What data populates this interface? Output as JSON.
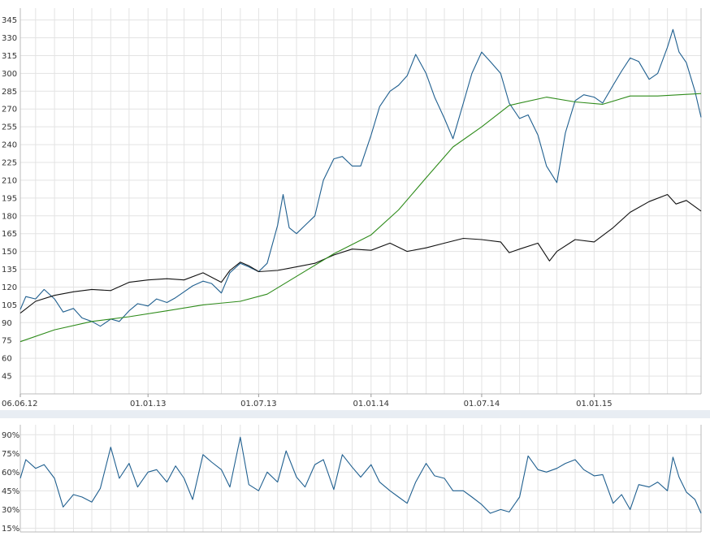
{
  "chart_data": [
    {
      "type": "line",
      "title": "",
      "xlabel": "",
      "ylabel": "",
      "ylim": [
        30,
        355
      ],
      "grid": true,
      "x_tick_labels": [
        "06.06.12",
        "01.01.13",
        "01.07.13",
        "01.01.14",
        "01.07.14",
        "01.01.15"
      ],
      "x_tick_dates": [
        "2012-06-06",
        "2013-01-01",
        "2013-07-01",
        "2014-01-01",
        "2014-07-01",
        "2015-01-01"
      ],
      "y_ticks": [
        45,
        60,
        75,
        90,
        105,
        120,
        135,
        150,
        165,
        180,
        195,
        210,
        225,
        240,
        255,
        270,
        285,
        300,
        315,
        330,
        345
      ],
      "series": [
        {
          "color": "#1f5f8f",
          "points": [
            [
              "2012-06-06",
              101
            ],
            [
              "2012-06-15",
              112
            ],
            [
              "2012-07-01",
              110
            ],
            [
              "2012-07-15",
              118
            ],
            [
              "2012-08-01",
              110
            ],
            [
              "2012-08-15",
              99
            ],
            [
              "2012-09-01",
              102
            ],
            [
              "2012-09-15",
              94
            ],
            [
              "2012-10-01",
              91
            ],
            [
              "2012-10-15",
              87
            ],
            [
              "2012-11-01",
              93
            ],
            [
              "2012-11-15",
              91
            ],
            [
              "2012-12-01",
              100
            ],
            [
              "2012-12-15",
              106
            ],
            [
              "2013-01-01",
              104
            ],
            [
              "2013-01-15",
              110
            ],
            [
              "2013-02-01",
              107
            ],
            [
              "2013-02-15",
              111
            ],
            [
              "2013-03-01",
              116
            ],
            [
              "2013-03-15",
              121
            ],
            [
              "2013-04-01",
              125
            ],
            [
              "2013-04-15",
              123
            ],
            [
              "2013-05-01",
              115
            ],
            [
              "2013-05-15",
              132
            ],
            [
              "2013-06-01",
              140
            ],
            [
              "2013-06-15",
              137
            ],
            [
              "2013-07-01",
              133
            ],
            [
              "2013-07-15",
              140
            ],
            [
              "2013-08-01",
              172
            ],
            [
              "2013-08-10",
              198
            ],
            [
              "2013-08-20",
              170
            ],
            [
              "2013-09-01",
              165
            ],
            [
              "2013-09-15",
              172
            ],
            [
              "2013-10-01",
              180
            ],
            [
              "2013-10-15",
              210
            ],
            [
              "2013-11-01",
              228
            ],
            [
              "2013-11-15",
              230
            ],
            [
              "2013-12-01",
              222
            ],
            [
              "2013-12-15",
              222
            ],
            [
              "2014-01-01",
              248
            ],
            [
              "2014-01-15",
              272
            ],
            [
              "2014-02-01",
              285
            ],
            [
              "2014-02-15",
              290
            ],
            [
              "2014-03-01",
              298
            ],
            [
              "2014-03-15",
              316
            ],
            [
              "2014-04-01",
              300
            ],
            [
              "2014-04-15",
              280
            ],
            [
              "2014-05-01",
              262
            ],
            [
              "2014-05-15",
              245
            ],
            [
              "2014-06-01",
              275
            ],
            [
              "2014-06-15",
              300
            ],
            [
              "2014-07-01",
              318
            ],
            [
              "2014-07-15",
              310
            ],
            [
              "2014-08-01",
              300
            ],
            [
              "2014-08-15",
              275
            ],
            [
              "2014-09-01",
              262
            ],
            [
              "2014-09-15",
              265
            ],
            [
              "2014-10-01",
              248
            ],
            [
              "2014-10-15",
              222
            ],
            [
              "2014-11-01",
              208
            ],
            [
              "2014-11-15",
              250
            ],
            [
              "2014-12-01",
              277
            ],
            [
              "2014-12-15",
              282
            ],
            [
              "2015-01-01",
              280
            ],
            [
              "2015-01-15",
              275
            ],
            [
              "2015-02-01",
              290
            ],
            [
              "2015-02-15",
              302
            ],
            [
              "2015-03-01",
              313
            ],
            [
              "2015-03-15",
              310
            ],
            [
              "2015-04-01",
              295
            ],
            [
              "2015-04-15",
              300
            ],
            [
              "2015-05-01",
              322
            ],
            [
              "2015-05-10",
              337
            ],
            [
              "2015-05-20",
              318
            ],
            [
              "2015-06-01",
              309
            ],
            [
              "2015-06-15",
              285
            ],
            [
              "2015-06-25",
              263
            ]
          ]
        },
        {
          "color": "#111111",
          "points": [
            [
              "2012-06-06",
              98
            ],
            [
              "2012-07-01",
              108
            ],
            [
              "2012-08-01",
              113
            ],
            [
              "2012-09-01",
              116
            ],
            [
              "2012-10-01",
              118
            ],
            [
              "2012-11-01",
              117
            ],
            [
              "2012-12-01",
              124
            ],
            [
              "2013-01-01",
              126
            ],
            [
              "2013-02-01",
              127
            ],
            [
              "2013-03-01",
              126
            ],
            [
              "2013-04-01",
              132
            ],
            [
              "2013-05-01",
              124
            ],
            [
              "2013-05-15",
              134
            ],
            [
              "2013-06-01",
              141
            ],
            [
              "2013-06-15",
              138
            ],
            [
              "2013-07-01",
              133
            ],
            [
              "2013-08-01",
              134
            ],
            [
              "2013-09-01",
              137
            ],
            [
              "2013-10-01",
              140
            ],
            [
              "2013-11-01",
              147
            ],
            [
              "2013-12-01",
              152
            ],
            [
              "2014-01-01",
              151
            ],
            [
              "2014-02-01",
              157
            ],
            [
              "2014-03-01",
              150
            ],
            [
              "2014-04-01",
              153
            ],
            [
              "2014-05-01",
              157
            ],
            [
              "2014-06-01",
              161
            ],
            [
              "2014-07-01",
              160
            ],
            [
              "2014-08-01",
              158
            ],
            [
              "2014-08-15",
              149
            ],
            [
              "2014-09-01",
              152
            ],
            [
              "2014-10-01",
              157
            ],
            [
              "2014-10-20",
              142
            ],
            [
              "2014-11-01",
              150
            ],
            [
              "2014-12-01",
              160
            ],
            [
              "2015-01-01",
              158
            ],
            [
              "2015-02-01",
              170
            ],
            [
              "2015-03-01",
              183
            ],
            [
              "2015-04-01",
              192
            ],
            [
              "2015-05-01",
              198
            ],
            [
              "2015-05-15",
              190
            ],
            [
              "2015-06-01",
              193
            ],
            [
              "2015-06-25",
              184
            ]
          ]
        },
        {
          "color": "#2e8b1a",
          "points": [
            [
              "2012-06-06",
              74
            ],
            [
              "2012-08-01",
              84
            ],
            [
              "2012-10-01",
              91
            ],
            [
              "2012-12-01",
              95
            ],
            [
              "2013-02-01",
              100
            ],
            [
              "2013-04-01",
              105
            ],
            [
              "2013-06-01",
              108
            ],
            [
              "2013-07-15",
              114
            ],
            [
              "2013-09-01",
              129
            ],
            [
              "2013-11-01",
              148
            ],
            [
              "2014-01-01",
              164
            ],
            [
              "2014-02-15",
              185
            ],
            [
              "2014-04-01",
              212
            ],
            [
              "2014-05-15",
              238
            ],
            [
              "2014-07-01",
              255
            ],
            [
              "2014-08-15",
              273
            ],
            [
              "2014-10-15",
              280
            ],
            [
              "2014-12-01",
              276
            ],
            [
              "2015-01-15",
              274
            ],
            [
              "2015-03-01",
              281
            ],
            [
              "2015-04-15",
              281
            ],
            [
              "2015-06-25",
              283
            ]
          ]
        }
      ]
    },
    {
      "type": "line",
      "title": "",
      "xlabel": "",
      "ylabel": "",
      "ylim": [
        12,
        98
      ],
      "grid": true,
      "y_ticks": [
        15,
        30,
        45,
        60,
        75,
        90
      ],
      "y_tick_labels": [
        "15%",
        "30%",
        "45%",
        "60%",
        "75%",
        "90%"
      ],
      "series": [
        {
          "color": "#1f5f8f",
          "points": [
            [
              "2012-06-06",
              55
            ],
            [
              "2012-06-15",
              70
            ],
            [
              "2012-07-01",
              63
            ],
            [
              "2012-07-15",
              66
            ],
            [
              "2012-08-01",
              55
            ],
            [
              "2012-08-15",
              32
            ],
            [
              "2012-09-01",
              42
            ],
            [
              "2012-09-15",
              40
            ],
            [
              "2012-10-01",
              36
            ],
            [
              "2012-10-15",
              47
            ],
            [
              "2012-11-01",
              80
            ],
            [
              "2012-11-15",
              55
            ],
            [
              "2012-12-01",
              67
            ],
            [
              "2012-12-15",
              48
            ],
            [
              "2013-01-01",
              60
            ],
            [
              "2013-01-15",
              62
            ],
            [
              "2013-02-01",
              52
            ],
            [
              "2013-02-15",
              65
            ],
            [
              "2013-03-01",
              55
            ],
            [
              "2013-03-15",
              38
            ],
            [
              "2013-04-01",
              74
            ],
            [
              "2013-04-15",
              68
            ],
            [
              "2013-05-01",
              62
            ],
            [
              "2013-05-15",
              48
            ],
            [
              "2013-06-01",
              88
            ],
            [
              "2013-06-15",
              50
            ],
            [
              "2013-07-01",
              45
            ],
            [
              "2013-07-15",
              60
            ],
            [
              "2013-08-01",
              52
            ],
            [
              "2013-08-15",
              77
            ],
            [
              "2013-09-01",
              56
            ],
            [
              "2013-09-15",
              48
            ],
            [
              "2013-10-01",
              66
            ],
            [
              "2013-10-15",
              70
            ],
            [
              "2013-11-01",
              46
            ],
            [
              "2013-11-15",
              74
            ],
            [
              "2013-12-01",
              64
            ],
            [
              "2013-12-15",
              56
            ],
            [
              "2014-01-01",
              66
            ],
            [
              "2014-01-15",
              52
            ],
            [
              "2014-02-01",
              45
            ],
            [
              "2014-02-15",
              40
            ],
            [
              "2014-03-01",
              35
            ],
            [
              "2014-03-15",
              52
            ],
            [
              "2014-04-01",
              67
            ],
            [
              "2014-04-15",
              57
            ],
            [
              "2014-05-01",
              55
            ],
            [
              "2014-05-15",
              45
            ],
            [
              "2014-06-01",
              45
            ],
            [
              "2014-06-15",
              40
            ],
            [
              "2014-07-01",
              34
            ],
            [
              "2014-07-15",
              27
            ],
            [
              "2014-08-01",
              30
            ],
            [
              "2014-08-15",
              28
            ],
            [
              "2014-09-01",
              40
            ],
            [
              "2014-09-15",
              73
            ],
            [
              "2014-10-01",
              62
            ],
            [
              "2014-10-15",
              60
            ],
            [
              "2014-11-01",
              63
            ],
            [
              "2014-11-15",
              67
            ],
            [
              "2014-12-01",
              70
            ],
            [
              "2014-12-15",
              62
            ],
            [
              "2015-01-01",
              57
            ],
            [
              "2015-01-15",
              58
            ],
            [
              "2015-02-01",
              35
            ],
            [
              "2015-02-15",
              42
            ],
            [
              "2015-03-01",
              30
            ],
            [
              "2015-03-15",
              50
            ],
            [
              "2015-04-01",
              48
            ],
            [
              "2015-04-15",
              52
            ],
            [
              "2015-05-01",
              45
            ],
            [
              "2015-05-10",
              72
            ],
            [
              "2015-05-20",
              56
            ],
            [
              "2015-06-01",
              44
            ],
            [
              "2015-06-15",
              38
            ],
            [
              "2015-06-25",
              27
            ]
          ]
        }
      ]
    }
  ]
}
